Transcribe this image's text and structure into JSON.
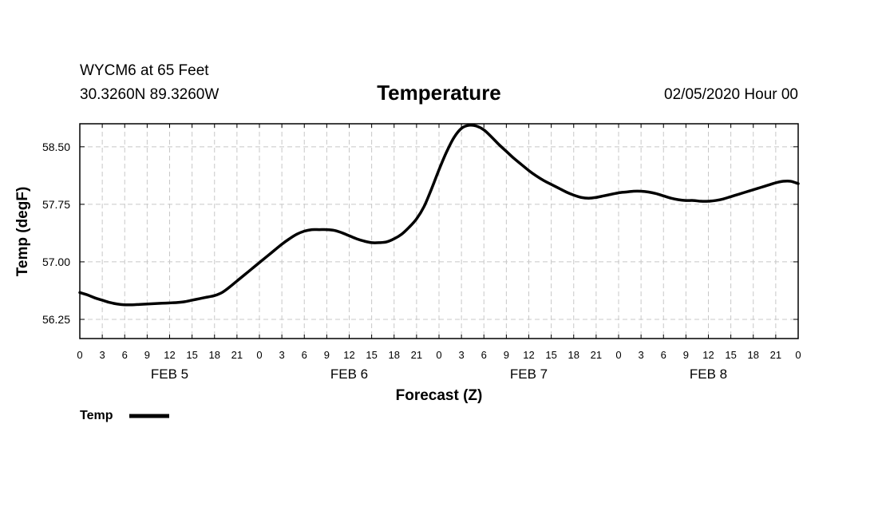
{
  "header": {
    "station": "WYCM6 at 65 Feet",
    "coords": "30.3260N 89.3260W",
    "datetime": "02/05/2020 Hour 00"
  },
  "chart_data": {
    "type": "line",
    "title": "Temperature",
    "xlabel": "Forecast (Z)",
    "ylabel": "Temp (degF)",
    "ylim": [
      56.0,
      58.8
    ],
    "yticks": [
      56.25,
      57.0,
      57.75,
      58.5
    ],
    "ytick_labels": [
      "56.25",
      "57.00",
      "57.75",
      "58.50"
    ],
    "xlim": [
      0,
      96
    ],
    "xticks": [
      0,
      3,
      6,
      9,
      12,
      15,
      18,
      21,
      24,
      27,
      30,
      33,
      36,
      39,
      42,
      45,
      48,
      51,
      54,
      57,
      60,
      63,
      66,
      69,
      72,
      75,
      78,
      81,
      84,
      87,
      90,
      93,
      96
    ],
    "xtick_labels": [
      "0",
      "3",
      "6",
      "9",
      "12",
      "15",
      "18",
      "21",
      "0",
      "3",
      "6",
      "9",
      "12",
      "15",
      "18",
      "21",
      "0",
      "3",
      "6",
      "9",
      "12",
      "15",
      "18",
      "21",
      "0",
      "3",
      "6",
      "9",
      "12",
      "15",
      "18",
      "21",
      "0"
    ],
    "day_labels": [
      {
        "label": "FEB 5",
        "x": 12
      },
      {
        "label": "FEB 6",
        "x": 36
      },
      {
        "label": "FEB 7",
        "x": 60
      },
      {
        "label": "FEB 8",
        "x": 84
      }
    ],
    "grid": true,
    "legend_position": "bottom-left",
    "series": [
      {
        "name": "Temp",
        "x": [
          0,
          1,
          2,
          3,
          4,
          5,
          6,
          7,
          8,
          9,
          10,
          11,
          12,
          13,
          14,
          15,
          16,
          17,
          18,
          19,
          20,
          21,
          22,
          23,
          24,
          25,
          26,
          27,
          28,
          29,
          30,
          31,
          32,
          33,
          34,
          35,
          36,
          37,
          38,
          39,
          40,
          41,
          42,
          43,
          44,
          45,
          46,
          47,
          48,
          49,
          50,
          51,
          52,
          53,
          54,
          55,
          56,
          57,
          58,
          59,
          60,
          61,
          62,
          63,
          64,
          65,
          66,
          67,
          68,
          69,
          70,
          71,
          72,
          73,
          74,
          75,
          76,
          77,
          78,
          79,
          80,
          81,
          82,
          83,
          84,
          85,
          86,
          87,
          88,
          89,
          90,
          91,
          92,
          93,
          94,
          95,
          96
        ],
        "values": [
          56.6,
          56.57,
          56.53,
          56.5,
          56.47,
          56.45,
          56.44,
          56.44,
          56.445,
          56.45,
          56.455,
          56.46,
          56.465,
          56.47,
          56.48,
          56.5,
          56.52,
          56.54,
          56.56,
          56.6,
          56.67,
          56.75,
          56.83,
          56.91,
          56.99,
          57.07,
          57.15,
          57.23,
          57.3,
          57.36,
          57.4,
          57.42,
          57.42,
          57.42,
          57.41,
          57.38,
          57.34,
          57.3,
          57.27,
          57.25,
          57.25,
          57.26,
          57.3,
          57.36,
          57.45,
          57.56,
          57.72,
          57.95,
          58.2,
          58.43,
          58.62,
          58.74,
          58.78,
          58.77,
          58.72,
          58.63,
          58.53,
          58.44,
          58.35,
          58.27,
          58.19,
          58.12,
          58.06,
          58.01,
          57.96,
          57.91,
          57.87,
          57.84,
          57.83,
          57.84,
          57.86,
          57.88,
          57.9,
          57.91,
          57.92,
          57.92,
          57.91,
          57.89,
          57.86,
          57.83,
          57.81,
          57.8,
          57.8,
          57.79,
          57.79,
          57.8,
          57.82,
          57.85,
          57.88,
          57.91,
          57.94,
          57.97,
          58.0,
          58.03,
          58.05,
          58.05,
          58.02
        ]
      }
    ]
  }
}
